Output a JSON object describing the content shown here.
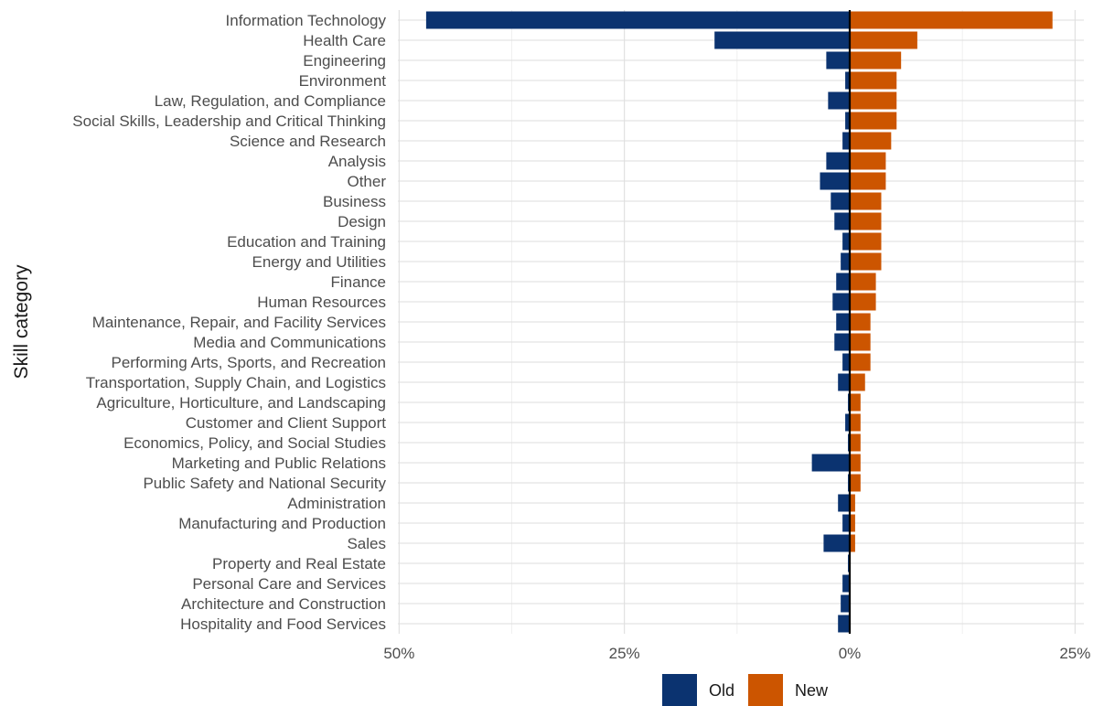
{
  "chart_data": {
    "type": "bar",
    "orientation": "horizontal-diverging",
    "title": "",
    "xlabel": "",
    "ylabel": "Skill category",
    "xlim": [
      -50,
      26
    ],
    "x_ticks": [
      {
        "value": -50,
        "label": "50%"
      },
      {
        "value": -25,
        "label": "25%"
      },
      {
        "value": 0,
        "label": "0%"
      },
      {
        "value": 25,
        "label": "25%"
      }
    ],
    "grid": true,
    "legend_position": "bottom",
    "categories": [
      "Information Technology",
      "Health Care",
      "Engineering",
      "Environment",
      "Law, Regulation, and Compliance",
      "Social Skills, Leadership and Critical Thinking",
      "Science and Research",
      "Analysis",
      "Other",
      "Business",
      "Design",
      "Education and Training",
      "Energy and Utilities",
      "Finance",
      "Human Resources",
      "Maintenance, Repair, and Facility Services",
      "Media and Communications",
      "Performing Arts, Sports, and Recreation",
      "Transportation, Supply Chain, and Logistics",
      "Agriculture, Horticulture, and Landscaping",
      "Customer and Client Support",
      "Economics, Policy, and Social Studies",
      "Marketing and Public Relations",
      "Public Safety and National Security",
      "Administration",
      "Manufacturing and Production",
      "Sales",
      "Property and Real Estate",
      "Personal Care and Services",
      "Architecture and Construction",
      "Hospitality and Food Services"
    ],
    "series": [
      {
        "name": "Old",
        "color": "#0b3370",
        "values": [
          47,
          15,
          2.6,
          0.5,
          2.4,
          0.5,
          0.8,
          2.6,
          3.3,
          2.1,
          1.7,
          0.8,
          1.0,
          1.5,
          1.9,
          1.5,
          1.7,
          0.8,
          1.3,
          0.2,
          0.5,
          0.2,
          4.2,
          0.2,
          1.3,
          0.8,
          2.9,
          0.2,
          0.8,
          1.0,
          1.3
        ]
      },
      {
        "name": "New",
        "color": "#cc5500",
        "values": [
          22.5,
          7.5,
          5.7,
          5.2,
          5.2,
          5.2,
          4.6,
          4.0,
          4.0,
          3.5,
          3.5,
          3.5,
          3.5,
          2.9,
          2.9,
          2.3,
          2.3,
          2.3,
          1.7,
          1.2,
          1.2,
          1.2,
          1.2,
          1.2,
          0.6,
          0.6,
          0.6,
          0.1,
          0.0,
          0.0,
          0.0
        ]
      }
    ]
  }
}
